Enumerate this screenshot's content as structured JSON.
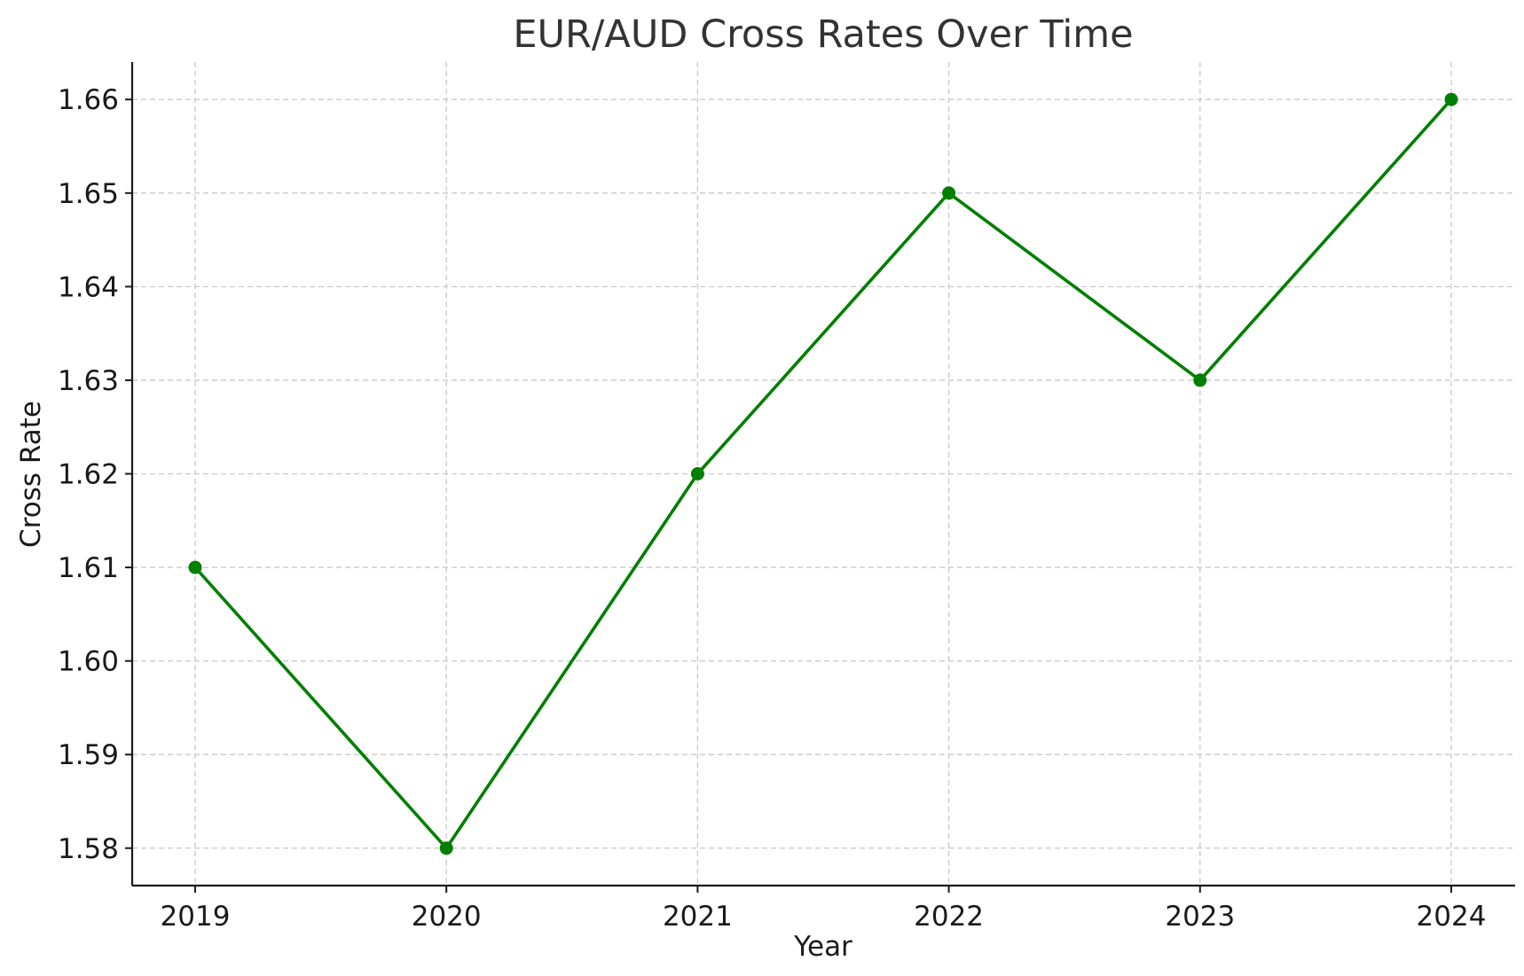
{
  "chart_data": {
    "type": "line",
    "title": "EUR/AUD Cross Rates Over Time",
    "xlabel": "Year",
    "ylabel": "Cross Rate",
    "x": [
      "2019",
      "2020",
      "2021",
      "2022",
      "2023",
      "2024"
    ],
    "series": [
      {
        "values": [
          1.61,
          1.58,
          1.62,
          1.65,
          1.63,
          1.66
        ],
        "color": "#007f00",
        "marker": "circle"
      }
    ],
    "ylim": [
      1.576,
      1.664
    ],
    "yticks": [
      "1.58",
      "1.59",
      "1.60",
      "1.61",
      "1.62",
      "1.63",
      "1.64",
      "1.65",
      "1.66"
    ],
    "grid": true,
    "legend": "none"
  }
}
